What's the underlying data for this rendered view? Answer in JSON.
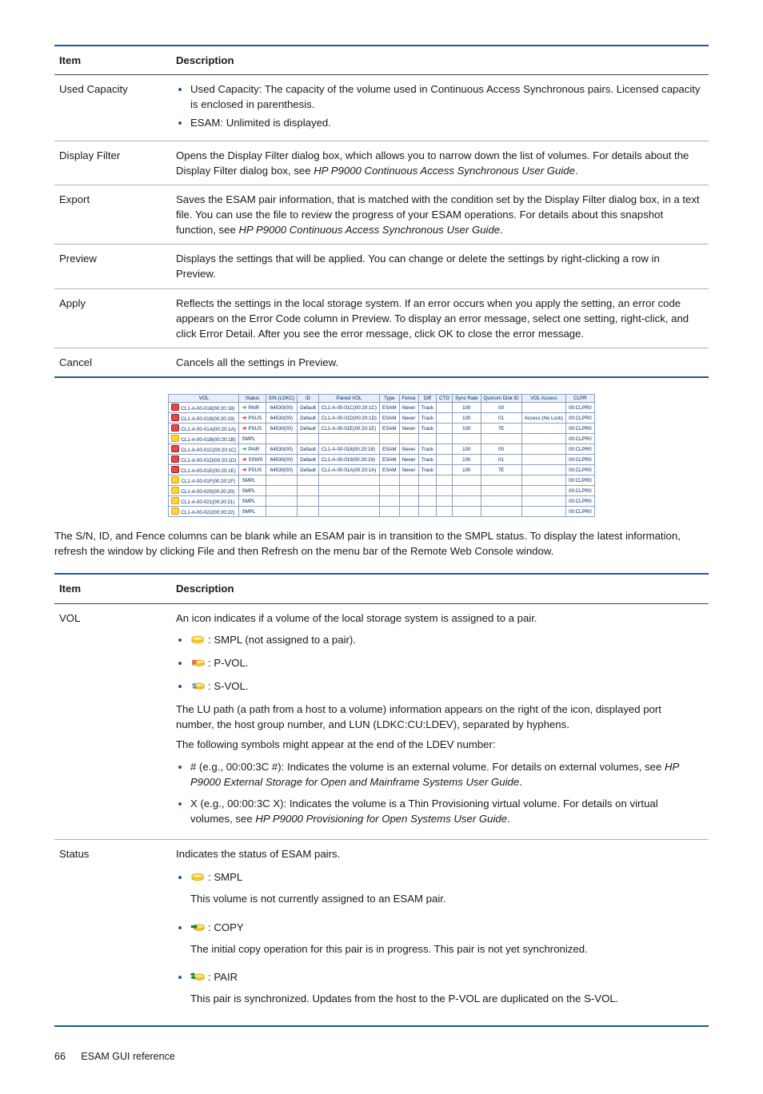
{
  "table1": {
    "headers": {
      "item": "Item",
      "desc": "Description"
    },
    "rows": [
      {
        "item": "Used Capacity",
        "desc_list": [
          "Used Capacity: The capacity of the volume used in Continuous Access Synchronous pairs. Licensed capacity is enclosed in parenthesis.",
          "ESAM: Unlimited is displayed."
        ]
      },
      {
        "item": "Display Filter",
        "desc_html": "Opens the Display Filter dialog box, which allows you to narrow down the list of volumes. For details about the Display Filter dialog box, see <em>HP P9000 Continuous Access Synchronous User Guide</em>."
      },
      {
        "item": "Export",
        "desc_html": "Saves the ESAM pair information, that is matched with the condition set by the Display Filter dialog box, in a text file. You can use the file to review the progress of your ESAM operations. For details about this snapshot function, see <em>HP P9000 Continuous Access Synchronous User Guide</em>."
      },
      {
        "item": "Preview",
        "desc_html": "Displays the settings that will be applied. You can change or delete the settings by right-clicking a row in Preview."
      },
      {
        "item": "Apply",
        "desc_html": "Reflects the settings in the local storage system. If an error occurs when you apply the setting, an error code appears on the Error Code column in Preview. To display an error message, select one setting, right-click, and click Error Detail. After you see the error message, click OK to close the error message."
      },
      {
        "item": "Cancel",
        "desc_html": "Cancels all the settings in Preview."
      }
    ]
  },
  "mini_table": {
    "headers": [
      "VOL",
      "Status",
      "S/N (LDKC)",
      "ID",
      "Paired VOL",
      "Type",
      "Fence",
      "Diff",
      "CTG",
      "Sync Rate",
      "Quorum Disk ID",
      "VOL Access",
      "CLPR"
    ],
    "rows": [
      {
        "icon": "red",
        "vol": "CL1-A-00-018(00:20:18)",
        "stat_arrow": "green",
        "status": "PAIR",
        "sn": "64530(00)",
        "id": "Default",
        "paired": "CL1-A-00-01C(00:20:1C)",
        "type": "ESAM",
        "fence": "Never",
        "diff": "Track",
        "ctg": "",
        "sync": "100",
        "qd": "00",
        "va": "",
        "clpr": "00:CLPR0"
      },
      {
        "icon": "red",
        "vol": "CL1-A-00-019(00:20:19)",
        "stat_arrow": "red",
        "status": "PSUS",
        "sn": "64530(00)",
        "id": "Default",
        "paired": "CL1-A-00-01D(00:20:1D)",
        "type": "ESAM",
        "fence": "Never",
        "diff": "Track",
        "ctg": "",
        "sync": "100",
        "qd": "01",
        "va": "Access (No Lock)",
        "clpr": "00:CLPR0"
      },
      {
        "icon": "red",
        "vol": "CL1-A-00-01A(00:20:1A)",
        "stat_arrow": "red",
        "status": "PSUS",
        "sn": "64530(00)",
        "id": "Default",
        "paired": "CL1-A-00-01E(00:20:1E)",
        "type": "ESAM",
        "fence": "Never",
        "diff": "Track",
        "ctg": "",
        "sync": "100",
        "qd": "7E",
        "va": "",
        "clpr": "00:CLPR0"
      },
      {
        "icon": "yellow",
        "vol": "CL1-A-00-01B(00:20:1B)",
        "stat_arrow": "",
        "status": "SMPL",
        "sn": "",
        "id": "",
        "paired": "",
        "type": "",
        "fence": "",
        "diff": "",
        "ctg": "",
        "sync": "",
        "qd": "",
        "va": "",
        "clpr": "00:CLPR0"
      },
      {
        "icon": "red",
        "vol": "CL1-A-00-01C(00:20:1C)",
        "stat_arrow": "green",
        "status": "PAIR",
        "sn": "64530(00)",
        "id": "Default",
        "paired": "CL1-A-00-018(00:20:18)",
        "type": "ESAM",
        "fence": "Never",
        "diff": "Track",
        "ctg": "",
        "sync": "100",
        "qd": "00",
        "va": "",
        "clpr": "00:CLPR0"
      },
      {
        "icon": "red",
        "vol": "CL1-A-00-01D(00:20:1D)",
        "stat_arrow": "red",
        "status": "SSWS",
        "sn": "64530(00)",
        "id": "Default",
        "paired": "CL1-A-00-019(00:20:19)",
        "type": "ESAM",
        "fence": "Never",
        "diff": "Track",
        "ctg": "",
        "sync": "100",
        "qd": "01",
        "va": "",
        "clpr": "00:CLPR0"
      },
      {
        "icon": "red",
        "vol": "CL1-A-00-01E(00:20:1E)",
        "stat_arrow": "red",
        "status": "PSUS",
        "sn": "64530(00)",
        "id": "Default",
        "paired": "CL1-A-00-01A(00:20:1A)",
        "type": "ESAM",
        "fence": "Never",
        "diff": "Track",
        "ctg": "",
        "sync": "100",
        "qd": "7E",
        "va": "",
        "clpr": "00:CLPR0"
      },
      {
        "icon": "yellow",
        "vol": "CL1-A-00-01F(00:20:1F)",
        "stat_arrow": "",
        "status": "SMPL",
        "sn": "",
        "id": "",
        "paired": "",
        "type": "",
        "fence": "",
        "diff": "",
        "ctg": "",
        "sync": "",
        "qd": "",
        "va": "",
        "clpr": "00:CLPR0"
      },
      {
        "icon": "yellow",
        "vol": "CL1-A-00-020(00:20:20)",
        "stat_arrow": "",
        "status": "SMPL",
        "sn": "",
        "id": "",
        "paired": "",
        "type": "",
        "fence": "",
        "diff": "",
        "ctg": "",
        "sync": "",
        "qd": "",
        "va": "",
        "clpr": "00:CLPR0"
      },
      {
        "icon": "yellow",
        "vol": "CL1-A-00-021(00:20:21)",
        "stat_arrow": "",
        "status": "SMPL",
        "sn": "",
        "id": "",
        "paired": "",
        "type": "",
        "fence": "",
        "diff": "",
        "ctg": "",
        "sync": "",
        "qd": "",
        "va": "",
        "clpr": "00:CLPR0"
      },
      {
        "icon": "yellow",
        "vol": "CL1-A-00-022(00:20:22)",
        "stat_arrow": "",
        "status": "SMPL",
        "sn": "",
        "id": "",
        "paired": "",
        "type": "",
        "fence": "",
        "diff": "",
        "ctg": "",
        "sync": "",
        "qd": "",
        "va": "",
        "clpr": "00:CLPR0"
      }
    ]
  },
  "mid_para": "The S/N, ID, and Fence columns can be blank while an ESAM pair is in transition to the SMPL status. To display the latest information, refresh the window by clicking File and then Refresh on the menu bar of the Remote Web Console window.",
  "table2": {
    "headers": {
      "item": "Item",
      "desc": "Description"
    },
    "rows": {
      "vol": {
        "item": "VOL",
        "intro": "An icon indicates if a volume of the local storage system is assigned to a pair.",
        "icons": [
          {
            "type": "smpl",
            "text": ": SMPL (not assigned to a pair)."
          },
          {
            "type": "pvol",
            "text": ": P-VOL."
          },
          {
            "type": "svol",
            "text": ": S-VOL."
          }
        ],
        "para1": "The LU path (a path from a host to a volume) information appears on the right of the icon, displayed port number, the host group number, and LUN (LDKC:CU:LDEV), separated by hyphens.",
        "para2": "The following symbols might appear at the end of the LDEV number:",
        "symbols": [
          "# (e.g., 00:00:3C #): Indicates the volume is an external volume. For details on external volumes, see <em>HP P9000 External Storage for Open and Mainframe Systems User Guide</em>.",
          "X (e.g., 00:00:3C X): Indicates the volume is a Thin Provisioning virtual volume. For details on virtual volumes, see <em>HP P9000 Provisioning for Open Systems User Guide</em>."
        ]
      },
      "status": {
        "item": "Status",
        "intro": "Indicates the status of ESAM pairs.",
        "items": [
          {
            "type": "smpl",
            "label": ": SMPL",
            "desc": "This volume is not currently assigned to an ESAM pair."
          },
          {
            "type": "copy",
            "label": ": COPY",
            "desc": "The initial copy operation for this pair is in progress. This pair is not yet synchronized."
          },
          {
            "type": "pair",
            "label": ": PAIR",
            "desc": "This pair is synchronized. Updates from the host to the P-VOL are duplicated on the S-VOL."
          }
        ]
      }
    }
  },
  "colors": {
    "accent": "#1a5aa0",
    "bullet": "#1a5aa0",
    "icon_yellow_fill": "#ffd43b",
    "icon_yellow_stroke": "#d4a800",
    "icon_p_stroke": "#d02626",
    "icon_s_stroke": "#2a7fd6",
    "icon_copy_arrow": "#1a7f2e"
  },
  "footer": {
    "page": "66",
    "section": "ESAM GUI reference"
  }
}
